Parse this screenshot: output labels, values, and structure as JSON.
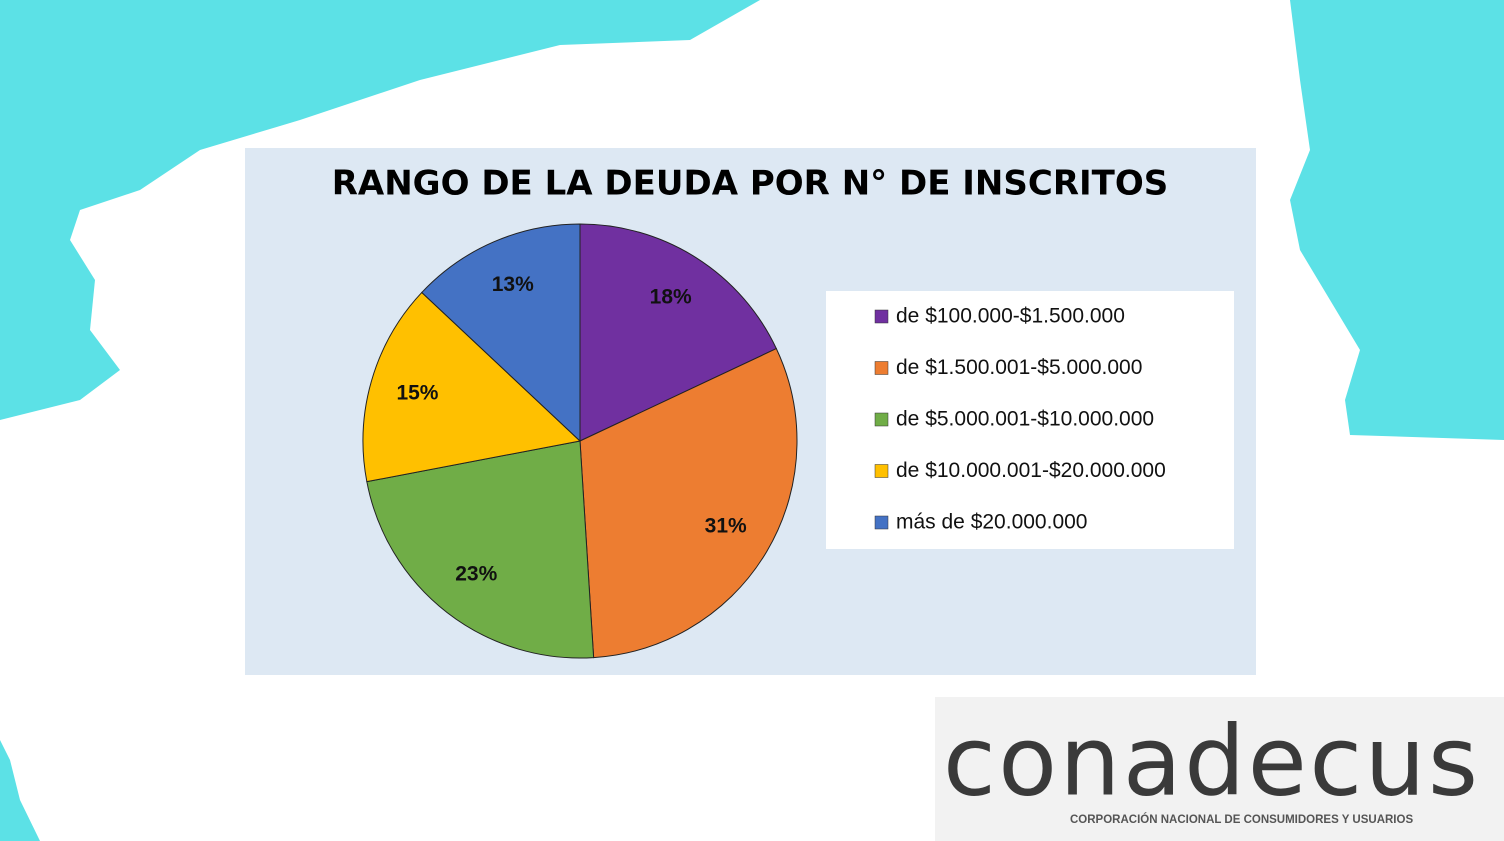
{
  "chart_data": {
    "type": "pie",
    "title": "RANGO DE LA DEUDA POR N° DE INSCRITOS",
    "categories": [
      "de $100.000-$1.500.000",
      "de $1.500.001-$5.000.000",
      "de $5.000.001-$10.000.000",
      "de $10.000.001-$20.000.000",
      "más de $20.000.000"
    ],
    "values": [
      18,
      31,
      23,
      15,
      13
    ],
    "value_labels": [
      "18%",
      "31%",
      "23%",
      "15%",
      "13%"
    ],
    "colors": [
      "#7030a0",
      "#ed7d31",
      "#70ad47",
      "#ffc000",
      "#4472c4"
    ],
    "legend": "right"
  },
  "logo": {
    "name": "conadecus",
    "tagline": "CORPORACIÓN NACIONAL DE CONSUMIDORES Y USUARIOS"
  }
}
